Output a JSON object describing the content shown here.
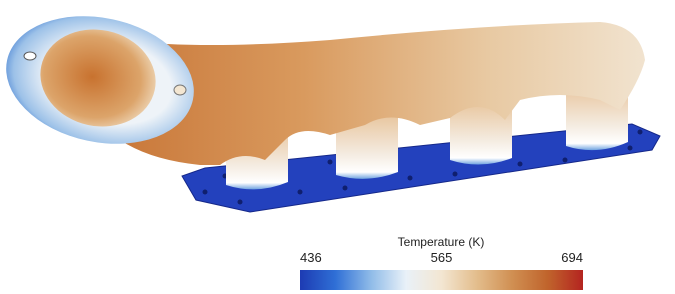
{
  "colorbar": {
    "title": "Temperature (K)",
    "ticks": [
      436,
      565,
      694
    ],
    "colors": [
      "#1d3bb3",
      "#2f6fd6",
      "#8fbbe8",
      "#e9f1f8",
      "#f3e6d2",
      "#e3bd8c",
      "#d08f52",
      "#c0642c",
      "#b42420"
    ]
  }
}
